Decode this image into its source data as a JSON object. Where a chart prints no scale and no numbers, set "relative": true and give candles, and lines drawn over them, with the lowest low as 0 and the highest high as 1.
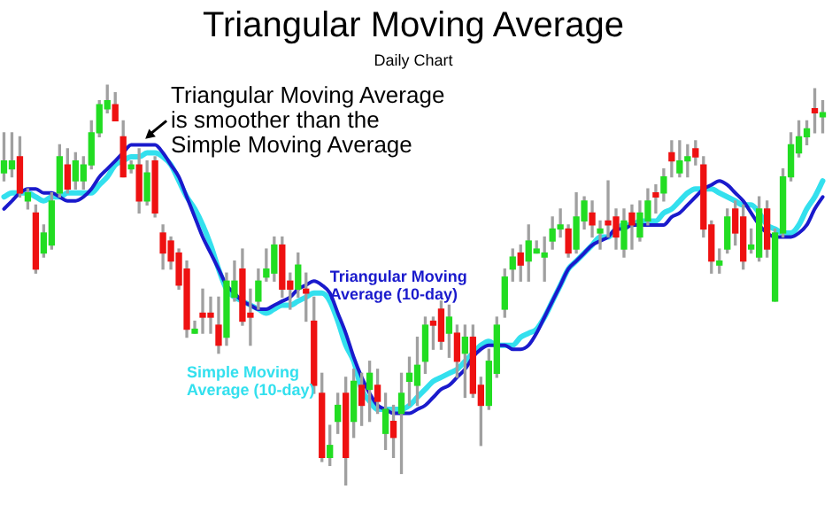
{
  "chart_data": {
    "type": "candlestick",
    "title": "Triangular Moving Average",
    "subtitle": "Daily Chart",
    "relative": true,
    "categories": [
      null,
      null,
      null,
      null,
      null,
      null,
      null,
      null,
      null,
      null,
      null,
      null,
      null,
      null,
      null,
      null,
      null,
      null,
      null,
      null,
      null,
      null,
      null,
      null,
      null,
      null,
      null,
      null,
      null,
      null,
      null,
      null,
      null,
      null,
      null,
      null,
      null,
      null,
      null,
      null,
      null,
      null,
      null,
      null,
      null,
      null,
      null,
      null,
      null,
      null,
      null,
      null,
      null,
      null,
      null,
      null,
      null,
      null,
      null,
      null,
      null,
      null,
      null,
      null,
      null,
      null,
      null,
      null,
      null,
      null,
      null,
      null,
      null,
      null,
      null,
      null,
      null,
      null,
      null,
      null,
      null,
      null,
      null,
      null,
      null,
      null,
      null,
      null,
      null,
      null,
      null,
      null,
      null,
      null,
      null,
      null,
      null,
      null,
      null,
      null,
      null,
      null,
      null,
      null
    ],
    "ohlc": [
      [
        0.78,
        0.88,
        0.76,
        0.81
      ],
      [
        0.79,
        0.88,
        0.77,
        0.81
      ],
      [
        0.82,
        0.87,
        0.72,
        0.73
      ],
      [
        0.71,
        0.74,
        0.69,
        0.73
      ],
      [
        0.68,
        0.7,
        0.53,
        0.54
      ],
      [
        0.58,
        0.65,
        0.57,
        0.63
      ],
      [
        0.6,
        0.73,
        0.59,
        0.71
      ],
      [
        0.73,
        0.85,
        0.72,
        0.82
      ],
      [
        0.8,
        0.84,
        0.73,
        0.74
      ],
      [
        0.76,
        0.83,
        0.74,
        0.81
      ],
      [
        0.76,
        0.82,
        0.74,
        0.8
      ],
      [
        0.8,
        0.91,
        0.79,
        0.88
      ],
      [
        0.88,
        0.96,
        0.87,
        0.95
      ],
      [
        0.94,
        1.0,
        0.93,
        0.96
      ],
      [
        0.95,
        0.98,
        0.91,
        0.91
      ],
      [
        0.87,
        0.91,
        0.77,
        0.77
      ],
      [
        0.79,
        0.81,
        0.78,
        0.8
      ],
      [
        0.8,
        0.84,
        0.68,
        0.71
      ],
      [
        0.71,
        0.81,
        0.7,
        0.78
      ],
      [
        0.81,
        0.82,
        0.67,
        0.68
      ],
      [
        0.63,
        0.65,
        0.54,
        0.58
      ],
      [
        0.61,
        0.62,
        0.54,
        0.56
      ],
      [
        0.58,
        0.59,
        0.49,
        0.5
      ],
      [
        0.54,
        0.56,
        0.37,
        0.39
      ],
      [
        0.38,
        0.41,
        0.38,
        0.39
      ],
      [
        0.43,
        0.49,
        0.38,
        0.42
      ],
      [
        0.43,
        0.47,
        0.38,
        0.42
      ],
      [
        0.4,
        0.47,
        0.33,
        0.35
      ],
      [
        0.37,
        0.53,
        0.35,
        0.51
      ],
      [
        0.47,
        0.56,
        0.46,
        0.51
      ],
      [
        0.54,
        0.59,
        0.4,
        0.41
      ],
      [
        0.43,
        0.49,
        0.35,
        0.42
      ],
      [
        0.46,
        0.54,
        0.44,
        0.51
      ],
      [
        0.52,
        0.59,
        0.51,
        0.54
      ],
      [
        0.53,
        0.62,
        0.51,
        0.6
      ],
      [
        0.6,
        0.62,
        0.47,
        0.49
      ],
      [
        0.51,
        0.53,
        0.44,
        0.49
      ],
      [
        0.49,
        0.58,
        0.47,
        0.55
      ],
      [
        0.49,
        0.53,
        0.41,
        0.48
      ],
      [
        0.41,
        0.47,
        0.23,
        0.25
      ],
      [
        0.23,
        0.28,
        0.06,
        0.07
      ],
      [
        0.07,
        0.15,
        0.05,
        0.1
      ],
      [
        0.16,
        0.23,
        0.13,
        0.2
      ],
      [
        0.23,
        0.27,
        0,
        0.07
      ],
      [
        0.16,
        0.29,
        0.12,
        0.26
      ],
      [
        0.25,
        0.28,
        0.15,
        0.2
      ],
      [
        0.24,
        0.31,
        0.16,
        0.28
      ],
      [
        0.25,
        0.29,
        0.18,
        0.21
      ],
      [
        0.13,
        0.23,
        0.09,
        0.19
      ],
      [
        0.16,
        0.2,
        0.07,
        0.12
      ],
      [
        0.18,
        0.28,
        0.03,
        0.23
      ],
      [
        0.26,
        0.32,
        0.2,
        0.28
      ],
      [
        0.25,
        0.37,
        0.2,
        0.3
      ],
      [
        0.31,
        0.42,
        0.28,
        0.4
      ],
      [
        0.41,
        0.42,
        0.34,
        0.4
      ],
      [
        0.44,
        0.46,
        0.34,
        0.36
      ],
      [
        0.38,
        0.45,
        0.32,
        0.42
      ],
      [
        0.38,
        0.4,
        0.27,
        0.31
      ],
      [
        0.33,
        0.4,
        0.22,
        0.37
      ],
      [
        0.37,
        0.4,
        0.22,
        0.23
      ],
      [
        0.25,
        0.27,
        0.1,
        0.2
      ],
      [
        0.2,
        0.34,
        0.19,
        0.31
      ],
      [
        0.28,
        0.42,
        0.27,
        0.4
      ],
      [
        0.44,
        0.54,
        0.42,
        0.52
      ],
      [
        0.54,
        0.59,
        0.51,
        0.57
      ],
      [
        0.58,
        0.6,
        0.51,
        0.55
      ],
      [
        0.56,
        0.65,
        0.51,
        0.61
      ],
      [
        0.58,
        0.61,
        0.58,
        0.59
      ],
      [
        0.57,
        0.62,
        0.51,
        0.58
      ],
      [
        0.61,
        0.67,
        0.59,
        0.64
      ],
      [
        0.64,
        0.69,
        0.62,
        0.65
      ],
      [
        0.64,
        0.65,
        0.57,
        0.58
      ],
      [
        0.59,
        0.73,
        0.58,
        0.67
      ],
      [
        0.66,
        0.72,
        0.64,
        0.71
      ],
      [
        0.68,
        0.71,
        0.62,
        0.65
      ],
      [
        0.63,
        0.66,
        0.59,
        0.64
      ],
      [
        0.66,
        0.76,
        0.62,
        0.65
      ],
      [
        0.67,
        0.69,
        0.59,
        0.62
      ],
      [
        0.59,
        0.69,
        0.57,
        0.66
      ],
      [
        0.68,
        0.7,
        0.59,
        0.65
      ],
      [
        0.62,
        0.71,
        0.61,
        0.68
      ],
      [
        0.66,
        0.74,
        0.65,
        0.71
      ],
      [
        0.73,
        0.75,
        0.68,
        0.72
      ],
      [
        0.73,
        0.79,
        0.71,
        0.77
      ],
      [
        0.83,
        0.86,
        0.77,
        0.81
      ],
      [
        0.78,
        0.86,
        0.77,
        0.81
      ],
      [
        0.81,
        0.85,
        0.77,
        0.82
      ],
      [
        0.84,
        0.86,
        0.8,
        0.82
      ],
      [
        0.8,
        0.82,
        0.62,
        0.64
      ],
      [
        0.65,
        0.66,
        0.53,
        0.56
      ],
      [
        0.55,
        0.59,
        0.53,
        0.56
      ],
      [
        0.59,
        0.69,
        0.58,
        0.67
      ],
      [
        0.69,
        0.71,
        0.6,
        0.63
      ],
      [
        0.67,
        0.7,
        0.54,
        0.56
      ],
      [
        0.59,
        0.64,
        0.58,
        0.6
      ],
      [
        0.57,
        0.72,
        0.56,
        0.69
      ],
      [
        0.69,
        0.71,
        0.57,
        0.59
      ],
      [
        0.46,
        0.64,
        0.46,
        0.63
      ],
      [
        0.63,
        0.79,
        0.62,
        0.77
      ],
      [
        0.77,
        0.88,
        0.76,
        0.85
      ],
      [
        0.83,
        0.91,
        0.82,
        0.87
      ],
      [
        0.87,
        0.91,
        0.85,
        0.89
      ],
      [
        0.94,
        0.99,
        0.88,
        0.93
      ],
      [
        0.92,
        0.96,
        0.88,
        0.93
      ]
    ],
    "colors": [
      "#22dd22",
      "#22dd22",
      "#ee1111",
      "#22dd22",
      "#ee1111",
      "#22dd22",
      "#22dd22",
      "#22dd22",
      "#ee1111",
      "#22dd22",
      "#22dd22",
      "#22dd22",
      "#22dd22",
      "#22dd22",
      "#ee1111",
      "#ee1111",
      "#22dd22",
      "#ee1111",
      "#22dd22",
      "#ee1111",
      "#ee1111",
      "#ee1111",
      "#ee1111",
      "#ee1111",
      "#22dd22",
      "#ee1111",
      "#ee1111",
      "#ee1111",
      "#22dd22",
      "#22dd22",
      "#ee1111",
      "#ee1111",
      "#22dd22",
      "#22dd22",
      "#22dd22",
      "#ee1111",
      "#ee1111",
      "#22dd22",
      "#ee1111",
      "#ee1111",
      "#ee1111",
      "#22dd22",
      "#22dd22",
      "#ee1111",
      "#22dd22",
      "#ee1111",
      "#22dd22",
      "#ee1111",
      "#22dd22",
      "#ee1111",
      "#22dd22",
      "#22dd22",
      "#22dd22",
      "#22dd22",
      "#ee1111",
      "#ee1111",
      "#22dd22",
      "#ee1111",
      "#22dd22",
      "#ee1111",
      "#ee1111",
      "#22dd22",
      "#22dd22",
      "#22dd22",
      "#22dd22",
      "#ee1111",
      "#22dd22",
      "#22dd22",
      "#22dd22",
      "#22dd22",
      "#22dd22",
      "#ee1111",
      "#22dd22",
      "#22dd22",
      "#ee1111",
      "#22dd22",
      "#ee1111",
      "#ee1111",
      "#22dd22",
      "#ee1111",
      "#22dd22",
      "#22dd22",
      "#ee1111",
      "#22dd22",
      "#ee1111",
      "#22dd22",
      "#22dd22",
      "#ee1111",
      "#ee1111",
      "#ee1111",
      "#22dd22",
      "#22dd22",
      "#ee1111",
      "#ee1111",
      "#22dd22",
      "#22dd22",
      "#ee1111",
      "#22dd22",
      "#22dd22",
      "#22dd22",
      "#22dd22",
      "#22dd22",
      "#ee1111",
      "#22dd22"
    ],
    "series": [
      {
        "name": "Triangular Moving Average (10-day)",
        "type": "line",
        "color": "#1a1acc",
        "values": [
          0.69,
          0.71,
          0.73,
          0.74,
          0.74,
          0.73,
          0.73,
          0.72,
          0.71,
          0.71,
          0.72,
          0.74,
          0.77,
          0.79,
          0.81,
          0.83,
          0.85,
          0.85,
          0.85,
          0.85,
          0.83,
          0.8,
          0.77,
          0.72,
          0.67,
          0.62,
          0.58,
          0.54,
          0.5,
          0.48,
          0.46,
          0.45,
          0.44,
          0.44,
          0.45,
          0.46,
          0.47,
          0.49,
          0.5,
          0.51,
          0.5,
          0.48,
          0.43,
          0.38,
          0.32,
          0.27,
          0.23,
          0.2,
          0.19,
          0.18,
          0.18,
          0.18,
          0.19,
          0.2,
          0.22,
          0.24,
          0.25,
          0.27,
          0.29,
          0.32,
          0.34,
          0.35,
          0.35,
          0.35,
          0.34,
          0.34,
          0.35,
          0.38,
          0.42,
          0.46,
          0.5,
          0.54,
          0.56,
          0.58,
          0.6,
          0.61,
          0.62,
          0.64,
          0.64,
          0.65,
          0.65,
          0.65,
          0.65,
          0.65,
          0.67,
          0.68,
          0.7,
          0.72,
          0.74,
          0.75,
          0.76,
          0.75,
          0.73,
          0.71,
          0.68,
          0.65,
          0.63,
          0.62,
          0.62,
          0.62,
          0.63,
          0.65,
          0.69,
          0.72
        ]
      },
      {
        "name": "Simple Moving Average (10-day)",
        "type": "line",
        "color": "#33e0ee",
        "values": [
          0.72,
          0.73,
          0.73,
          0.73,
          0.72,
          0.71,
          0.72,
          0.72,
          0.73,
          0.73,
          0.73,
          0.73,
          0.75,
          0.77,
          0.8,
          0.81,
          0.82,
          0.82,
          0.83,
          0.83,
          0.82,
          0.8,
          0.76,
          0.72,
          0.69,
          0.65,
          0.6,
          0.54,
          0.49,
          0.47,
          0.46,
          0.45,
          0.44,
          0.43,
          0.44,
          0.45,
          0.45,
          0.46,
          0.47,
          0.48,
          0.48,
          0.46,
          0.41,
          0.35,
          0.31,
          0.24,
          0.21,
          0.19,
          0.19,
          0.19,
          0.19,
          0.2,
          0.22,
          0.24,
          0.26,
          0.27,
          0.28,
          0.29,
          0.31,
          0.33,
          0.35,
          0.36,
          0.35,
          0.35,
          0.35,
          0.37,
          0.38,
          0.39,
          0.42,
          0.46,
          0.5,
          0.54,
          0.56,
          0.58,
          0.6,
          0.62,
          0.62,
          0.64,
          0.65,
          0.65,
          0.66,
          0.66,
          0.66,
          0.68,
          0.69,
          0.71,
          0.73,
          0.74,
          0.74,
          0.74,
          0.73,
          0.72,
          0.71,
          0.7,
          0.7,
          0.68,
          0.65,
          0.64,
          0.63,
          0.63,
          0.65,
          0.69,
          0.72,
          0.76
        ]
      }
    ],
    "annotations": [
      "Triangular Moving Average is smoother than the Simple Moving Average"
    ]
  }
}
